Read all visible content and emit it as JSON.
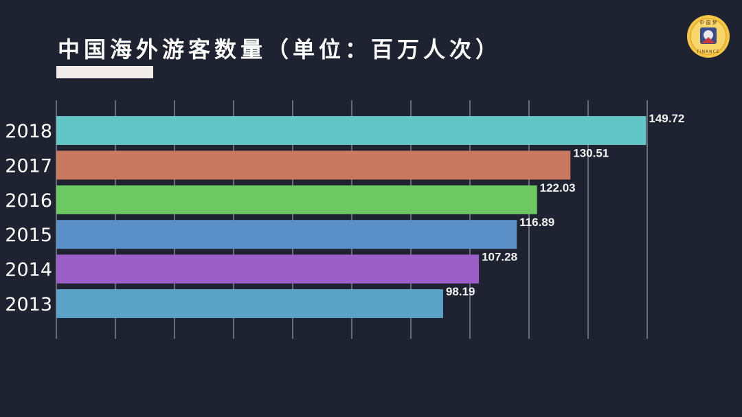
{
  "chart_data": {
    "type": "bar",
    "orientation": "horizontal",
    "title": "中国海外游客数量（单位：百万人次）",
    "categories": [
      "2018",
      "2017",
      "2016",
      "2015",
      "2014",
      "2013"
    ],
    "values": [
      149.72,
      130.51,
      122.03,
      116.89,
      107.28,
      98.19
    ],
    "value_labels": [
      "149.72",
      "130.51",
      "122.03",
      "116.89",
      "107.28",
      "98.19"
    ],
    "colors": [
      "#62c6c7",
      "#c97962",
      "#6cc860",
      "#5b8fc7",
      "#9b60c8",
      "#5aa3c7"
    ],
    "xlim": [
      0,
      150
    ],
    "grid": true,
    "xlabel": "",
    "ylabel": ""
  },
  "logo": {
    "icon": "finance-seal-icon",
    "text_top": "中 国 梦",
    "text_bottom": "FINANCE"
  }
}
